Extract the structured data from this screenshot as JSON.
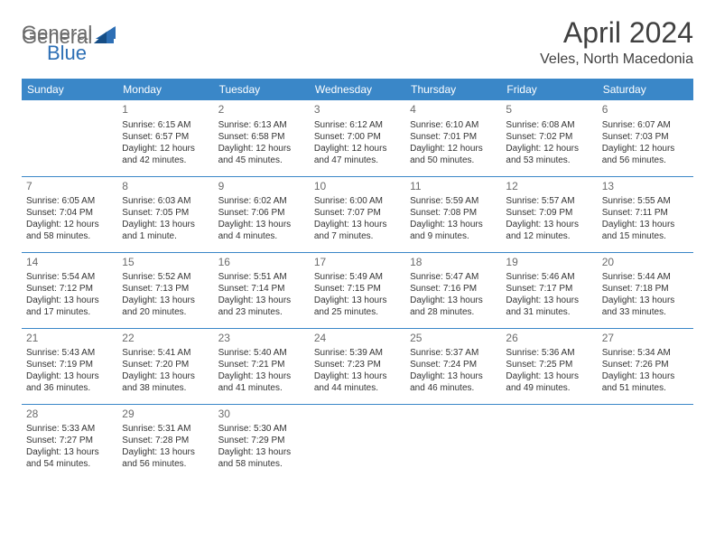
{
  "brand": {
    "part1": "General",
    "part2": "Blue"
  },
  "title": "April 2024",
  "location": "Veles, North Macedonia",
  "colors": {
    "header_bg": "#3a87c8",
    "header_text": "#ffffff",
    "border": "#3a87c8",
    "title_color": "#404040",
    "text_color": "#333333",
    "daynum_color": "#6b6b6b",
    "logo_gray": "#6a6a6a",
    "logo_blue": "#2d6fb5"
  },
  "dayNames": [
    "Sunday",
    "Monday",
    "Tuesday",
    "Wednesday",
    "Thursday",
    "Friday",
    "Saturday"
  ],
  "weeks": [
    [
      {
        "n": "",
        "sr": "",
        "ss": "",
        "d1": "",
        "d2": ""
      },
      {
        "n": "1",
        "sr": "Sunrise: 6:15 AM",
        "ss": "Sunset: 6:57 PM",
        "d1": "Daylight: 12 hours",
        "d2": "and 42 minutes."
      },
      {
        "n": "2",
        "sr": "Sunrise: 6:13 AM",
        "ss": "Sunset: 6:58 PM",
        "d1": "Daylight: 12 hours",
        "d2": "and 45 minutes."
      },
      {
        "n": "3",
        "sr": "Sunrise: 6:12 AM",
        "ss": "Sunset: 7:00 PM",
        "d1": "Daylight: 12 hours",
        "d2": "and 47 minutes."
      },
      {
        "n": "4",
        "sr": "Sunrise: 6:10 AM",
        "ss": "Sunset: 7:01 PM",
        "d1": "Daylight: 12 hours",
        "d2": "and 50 minutes."
      },
      {
        "n": "5",
        "sr": "Sunrise: 6:08 AM",
        "ss": "Sunset: 7:02 PM",
        "d1": "Daylight: 12 hours",
        "d2": "and 53 minutes."
      },
      {
        "n": "6",
        "sr": "Sunrise: 6:07 AM",
        "ss": "Sunset: 7:03 PM",
        "d1": "Daylight: 12 hours",
        "d2": "and 56 minutes."
      }
    ],
    [
      {
        "n": "7",
        "sr": "Sunrise: 6:05 AM",
        "ss": "Sunset: 7:04 PM",
        "d1": "Daylight: 12 hours",
        "d2": "and 58 minutes."
      },
      {
        "n": "8",
        "sr": "Sunrise: 6:03 AM",
        "ss": "Sunset: 7:05 PM",
        "d1": "Daylight: 13 hours",
        "d2": "and 1 minute."
      },
      {
        "n": "9",
        "sr": "Sunrise: 6:02 AM",
        "ss": "Sunset: 7:06 PM",
        "d1": "Daylight: 13 hours",
        "d2": "and 4 minutes."
      },
      {
        "n": "10",
        "sr": "Sunrise: 6:00 AM",
        "ss": "Sunset: 7:07 PM",
        "d1": "Daylight: 13 hours",
        "d2": "and 7 minutes."
      },
      {
        "n": "11",
        "sr": "Sunrise: 5:59 AM",
        "ss": "Sunset: 7:08 PM",
        "d1": "Daylight: 13 hours",
        "d2": "and 9 minutes."
      },
      {
        "n": "12",
        "sr": "Sunrise: 5:57 AM",
        "ss": "Sunset: 7:09 PM",
        "d1": "Daylight: 13 hours",
        "d2": "and 12 minutes."
      },
      {
        "n": "13",
        "sr": "Sunrise: 5:55 AM",
        "ss": "Sunset: 7:11 PM",
        "d1": "Daylight: 13 hours",
        "d2": "and 15 minutes."
      }
    ],
    [
      {
        "n": "14",
        "sr": "Sunrise: 5:54 AM",
        "ss": "Sunset: 7:12 PM",
        "d1": "Daylight: 13 hours",
        "d2": "and 17 minutes."
      },
      {
        "n": "15",
        "sr": "Sunrise: 5:52 AM",
        "ss": "Sunset: 7:13 PM",
        "d1": "Daylight: 13 hours",
        "d2": "and 20 minutes."
      },
      {
        "n": "16",
        "sr": "Sunrise: 5:51 AM",
        "ss": "Sunset: 7:14 PM",
        "d1": "Daylight: 13 hours",
        "d2": "and 23 minutes."
      },
      {
        "n": "17",
        "sr": "Sunrise: 5:49 AM",
        "ss": "Sunset: 7:15 PM",
        "d1": "Daylight: 13 hours",
        "d2": "and 25 minutes."
      },
      {
        "n": "18",
        "sr": "Sunrise: 5:47 AM",
        "ss": "Sunset: 7:16 PM",
        "d1": "Daylight: 13 hours",
        "d2": "and 28 minutes."
      },
      {
        "n": "19",
        "sr": "Sunrise: 5:46 AM",
        "ss": "Sunset: 7:17 PM",
        "d1": "Daylight: 13 hours",
        "d2": "and 31 minutes."
      },
      {
        "n": "20",
        "sr": "Sunrise: 5:44 AM",
        "ss": "Sunset: 7:18 PM",
        "d1": "Daylight: 13 hours",
        "d2": "and 33 minutes."
      }
    ],
    [
      {
        "n": "21",
        "sr": "Sunrise: 5:43 AM",
        "ss": "Sunset: 7:19 PM",
        "d1": "Daylight: 13 hours",
        "d2": "and 36 minutes."
      },
      {
        "n": "22",
        "sr": "Sunrise: 5:41 AM",
        "ss": "Sunset: 7:20 PM",
        "d1": "Daylight: 13 hours",
        "d2": "and 38 minutes."
      },
      {
        "n": "23",
        "sr": "Sunrise: 5:40 AM",
        "ss": "Sunset: 7:21 PM",
        "d1": "Daylight: 13 hours",
        "d2": "and 41 minutes."
      },
      {
        "n": "24",
        "sr": "Sunrise: 5:39 AM",
        "ss": "Sunset: 7:23 PM",
        "d1": "Daylight: 13 hours",
        "d2": "and 44 minutes."
      },
      {
        "n": "25",
        "sr": "Sunrise: 5:37 AM",
        "ss": "Sunset: 7:24 PM",
        "d1": "Daylight: 13 hours",
        "d2": "and 46 minutes."
      },
      {
        "n": "26",
        "sr": "Sunrise: 5:36 AM",
        "ss": "Sunset: 7:25 PM",
        "d1": "Daylight: 13 hours",
        "d2": "and 49 minutes."
      },
      {
        "n": "27",
        "sr": "Sunrise: 5:34 AM",
        "ss": "Sunset: 7:26 PM",
        "d1": "Daylight: 13 hours",
        "d2": "and 51 minutes."
      }
    ],
    [
      {
        "n": "28",
        "sr": "Sunrise: 5:33 AM",
        "ss": "Sunset: 7:27 PM",
        "d1": "Daylight: 13 hours",
        "d2": "and 54 minutes."
      },
      {
        "n": "29",
        "sr": "Sunrise: 5:31 AM",
        "ss": "Sunset: 7:28 PM",
        "d1": "Daylight: 13 hours",
        "d2": "and 56 minutes."
      },
      {
        "n": "30",
        "sr": "Sunrise: 5:30 AM",
        "ss": "Sunset: 7:29 PM",
        "d1": "Daylight: 13 hours",
        "d2": "and 58 minutes."
      },
      {
        "n": "",
        "sr": "",
        "ss": "",
        "d1": "",
        "d2": ""
      },
      {
        "n": "",
        "sr": "",
        "ss": "",
        "d1": "",
        "d2": ""
      },
      {
        "n": "",
        "sr": "",
        "ss": "",
        "d1": "",
        "d2": ""
      },
      {
        "n": "",
        "sr": "",
        "ss": "",
        "d1": "",
        "d2": ""
      }
    ]
  ]
}
